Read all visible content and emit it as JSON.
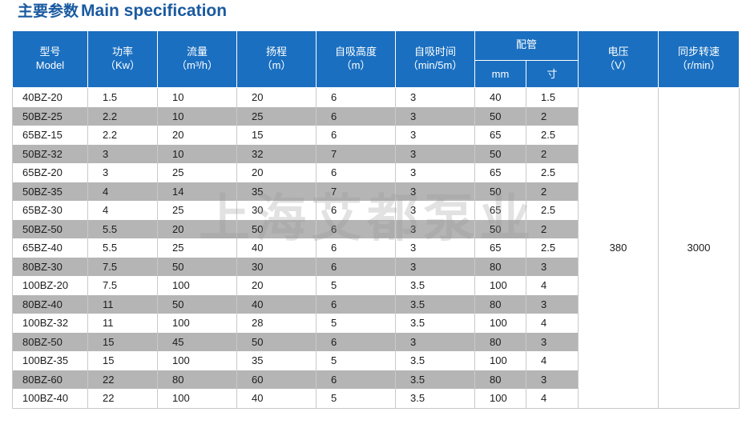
{
  "title": {
    "zh": "主要参数",
    "en": "Main specification"
  },
  "watermark": "上海艾都泵业",
  "header": {
    "model": {
      "zh": "型号",
      "en": "Model"
    },
    "power": {
      "zh": "功率",
      "en": "（Kw）"
    },
    "flow": {
      "zh": "流量",
      "en": "（m³/h）"
    },
    "head": {
      "zh": "扬程",
      "en": "（m）"
    },
    "suction_height": {
      "zh": "自吸高度",
      "en": "（m）"
    },
    "suction_time": {
      "zh": "自吸时间",
      "en": "（min/5m）"
    },
    "piping": {
      "zh": "配管",
      "mm": "mm",
      "inch": "寸"
    },
    "voltage": {
      "zh": "电压",
      "en": "（V）"
    },
    "speed": {
      "zh": "同步转速",
      "en": "（r/min）"
    }
  },
  "shared": {
    "voltage": "380",
    "speed": "3000"
  },
  "rows": [
    [
      "40BZ-20",
      "1.5",
      "10",
      "20",
      "6",
      "3",
      "40",
      "1.5"
    ],
    [
      "50BZ-25",
      "2.2",
      "10",
      "25",
      "6",
      "3",
      "50",
      "2"
    ],
    [
      "65BZ-15",
      "2.2",
      "20",
      "15",
      "6",
      "3",
      "65",
      "2.5"
    ],
    [
      "50BZ-32",
      "3",
      "10",
      "32",
      "7",
      "3",
      "50",
      "2"
    ],
    [
      "65BZ-20",
      "3",
      "25",
      "20",
      "6",
      "3",
      "65",
      "2.5"
    ],
    [
      "50BZ-35",
      "4",
      "14",
      "35",
      "7",
      "3",
      "50",
      "2"
    ],
    [
      "65BZ-30",
      "4",
      "25",
      "30",
      "6",
      "3",
      "65",
      "2.5"
    ],
    [
      "50BZ-50",
      "5.5",
      "20",
      "50",
      "6",
      "3",
      "50",
      "2"
    ],
    [
      "65BZ-40",
      "5.5",
      "25",
      "40",
      "6",
      "3",
      "65",
      "2.5"
    ],
    [
      "80BZ-30",
      "7.5",
      "50",
      "30",
      "6",
      "3",
      "80",
      "3"
    ],
    [
      "100BZ-20",
      "7.5",
      "100",
      "20",
      "5",
      "3.5",
      "100",
      "4"
    ],
    [
      "80BZ-40",
      "11",
      "50",
      "40",
      "6",
      "3.5",
      "80",
      "3"
    ],
    [
      "100BZ-32",
      "11",
      "100",
      "28",
      "5",
      "3.5",
      "100",
      "4"
    ],
    [
      "80BZ-50",
      "15",
      "45",
      "50",
      "6",
      "3",
      "80",
      "3"
    ],
    [
      "100BZ-35",
      "15",
      "100",
      "35",
      "5",
      "3.5",
      "100",
      "4"
    ],
    [
      "80BZ-60",
      "22",
      "80",
      "60",
      "6",
      "3.5",
      "80",
      "3"
    ],
    [
      "100BZ-40",
      "22",
      "100",
      "40",
      "5",
      "3.5",
      "100",
      "4"
    ]
  ]
}
